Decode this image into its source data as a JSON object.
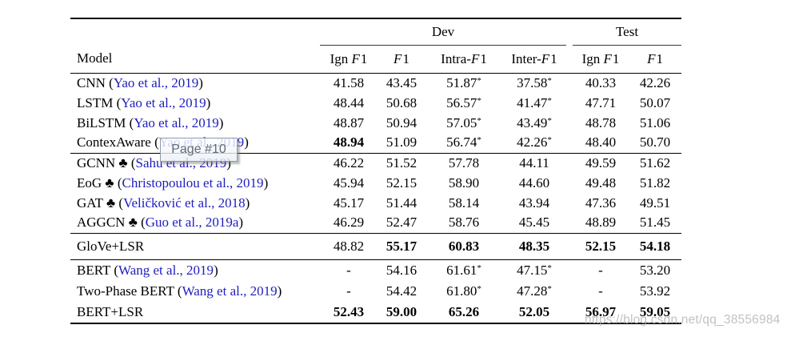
{
  "colors": {
    "citation_blue": "#1e1ebe",
    "text": "#000000",
    "watermark_gray": "#bababa",
    "rule": "#000000"
  },
  "header": {
    "model": "Model",
    "dev": "Dev",
    "test": "Test",
    "f": "F",
    "one": "1",
    "dev_cols": [
      {
        "prefix": "Ign "
      },
      {
        "prefix": ""
      },
      {
        "prefix": "Intra-"
      },
      {
        "prefix": "Inter-"
      }
    ],
    "test_cols": [
      {
        "prefix": "Ign "
      },
      {
        "prefix": ""
      }
    ]
  },
  "groups": {
    "baseline_seq": [
      {
        "model_pre": "CNN (",
        "cite": "Yao et al., 2019",
        "model_post": ")",
        "c1": "41.58",
        "c2": "43.45",
        "c3": "51.87",
        "c3_sup": "*",
        "c4": "37.58",
        "c4_sup": "*",
        "c5": "40.33",
        "c6": "42.26"
      },
      {
        "model_pre": "LSTM (",
        "cite": "Yao et al., 2019",
        "model_post": ")",
        "c1": "48.44",
        "c2": "50.68",
        "c3": "56.57",
        "c3_sup": "*",
        "c4": "41.47",
        "c4_sup": "*",
        "c5": "47.71",
        "c6": "50.07"
      },
      {
        "model_pre": "BiLSTM (",
        "cite": "Yao et al., 2019",
        "model_post": ")",
        "c1": "48.87",
        "c2": "50.94",
        "c3": "57.05",
        "c3_sup": "*",
        "c4": "43.49",
        "c4_sup": "*",
        "c5": "48.78",
        "c6": "51.06"
      },
      {
        "model_pre": "ContexAware (",
        "cite": "Yao et al., 2019",
        "model_post": ")",
        "c1": "48.94",
        "c2": "51.09",
        "c3": "56.74",
        "c3_sup": "*",
        "c4": "42.26",
        "c4_sup": "*",
        "c5": "48.40",
        "c6": "50.70"
      }
    ],
    "graph_models": [
      {
        "model_pre": "GCNN ♣ (",
        "cite": "Sahu et al., 2019",
        "model_post": ")",
        "c1": "46.22",
        "c2": "51.52",
        "c3": "57.78",
        "c4": "44.11",
        "c5": "49.59",
        "c6": "51.62"
      },
      {
        "model_pre": "EoG ♣ (",
        "cite": "Christopoulou et al., 2019",
        "model_post": ")",
        "c1": "45.94",
        "c2": "52.15",
        "c3": "58.90",
        "c4": "44.60",
        "c5": "49.48",
        "c6": "51.82"
      },
      {
        "model_pre": "GAT ♣ (",
        "cite": "Veličković et al., 2018",
        "model_post": ")",
        "c1": "45.17",
        "c2": "51.44",
        "c3": "58.14",
        "c4": "43.94",
        "c5": "47.36",
        "c6": "49.51"
      },
      {
        "model_pre": "AGGCN ♣ (",
        "cite": "Guo et al., 2019a",
        "model_post": ")",
        "c1": "46.29",
        "c2": "52.47",
        "c3": "58.76",
        "c4": "45.45",
        "c5": "48.89",
        "c6": "51.45"
      }
    ],
    "glove_lsr": [
      {
        "model_pre": "GloVe+LSR",
        "cite": "",
        "model_post": "",
        "c1": "48.82",
        "c2": "55.17",
        "c3": "60.83",
        "c4": "48.35",
        "c5": "52.15",
        "c6": "54.18"
      }
    ],
    "bert_models": [
      {
        "model_pre": "BERT (",
        "cite": "Wang et al., 2019",
        "model_post": ")",
        "c1": "-",
        "c2": "54.16",
        "c3": "61.61",
        "c3_sup": "*",
        "c4": "47.15",
        "c4_sup": "*",
        "c5": "-",
        "c6": "53.20"
      },
      {
        "model_pre": "Two-Phase BERT (",
        "cite": "Wang et al., 2019",
        "model_post": ")",
        "c1": "-",
        "c2": "54.42",
        "c3": "61.80",
        "c3_sup": "*",
        "c4": "47.28",
        "c4_sup": "*",
        "c5": "-",
        "c6": "53.92"
      },
      {
        "model_pre": "BERT+LSR",
        "cite": "",
        "model_post": "",
        "c1": "52.43",
        "c2": "59.00",
        "c3": "65.26",
        "c4": "52.05",
        "c5": "56.97",
        "c6": "59.05"
      }
    ]
  },
  "tooltip": {
    "text": "Page #10"
  },
  "watermark": {
    "text": "https://blog.csdn.net/qq_38556984"
  }
}
